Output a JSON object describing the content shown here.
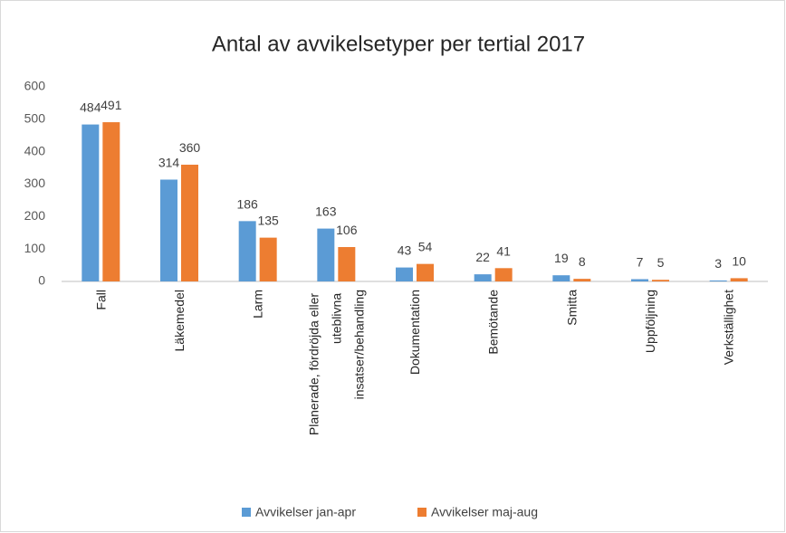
{
  "chart_data": {
    "type": "bar",
    "title": "Antal av avvikelsetyper per tertial 2017",
    "categories": [
      "Fall",
      "Läkemedel",
      "Larm",
      "Planerade, fördröjda eller uteblivna insatser/behandling",
      "Dokumentation",
      "Bemötande",
      "Smitta",
      "Uppföljning",
      "Verkställighet"
    ],
    "series": [
      {
        "name": "Avvikelser jan-apr",
        "color": "#5b9bd5",
        "values": [
          484,
          314,
          186,
          163,
          43,
          22,
          19,
          7,
          3
        ]
      },
      {
        "name": "Avvikelser maj-aug",
        "color": "#ed7d31",
        "values": [
          491,
          360,
          135,
          106,
          54,
          41,
          8,
          5,
          10
        ]
      }
    ],
    "ylim": [
      0,
      600
    ],
    "yticks": [
      0,
      100,
      200,
      300,
      400,
      500,
      600
    ],
    "grid": false,
    "legend": "bottom"
  }
}
